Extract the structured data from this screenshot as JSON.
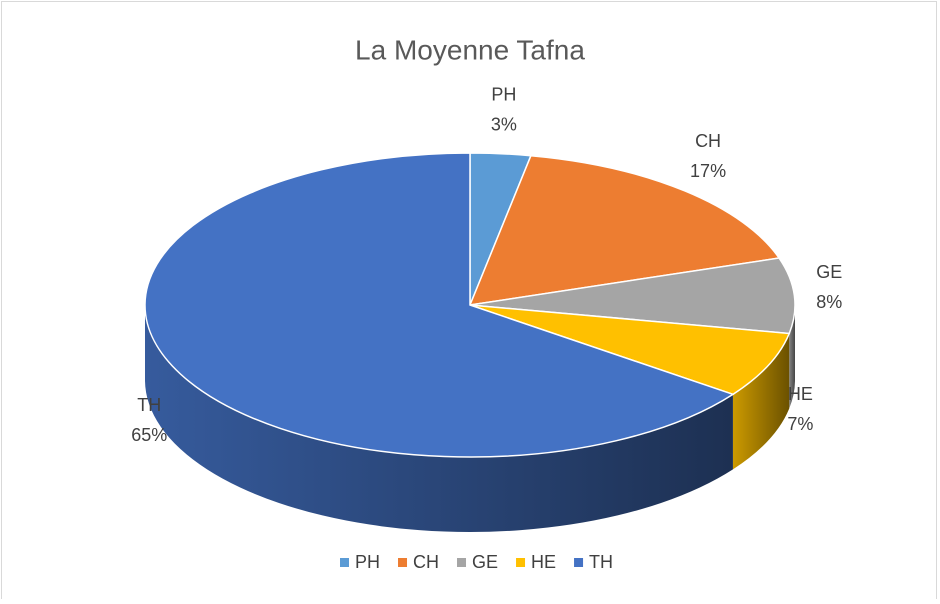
{
  "chart_data": {
    "type": "pie",
    "title": "La Moyenne Tafna",
    "categories": [
      "PH",
      "CH",
      "GE",
      "HE",
      "TH"
    ],
    "values": [
      3,
      17,
      8,
      7,
      65
    ],
    "value_labels": [
      "3%",
      "17%",
      "8%",
      "7%",
      "65%"
    ],
    "colors": [
      "#5b9bd5",
      "#ed7d31",
      "#a5a5a5",
      "#ffc000",
      "#4472c4"
    ],
    "legend": "bottom"
  }
}
